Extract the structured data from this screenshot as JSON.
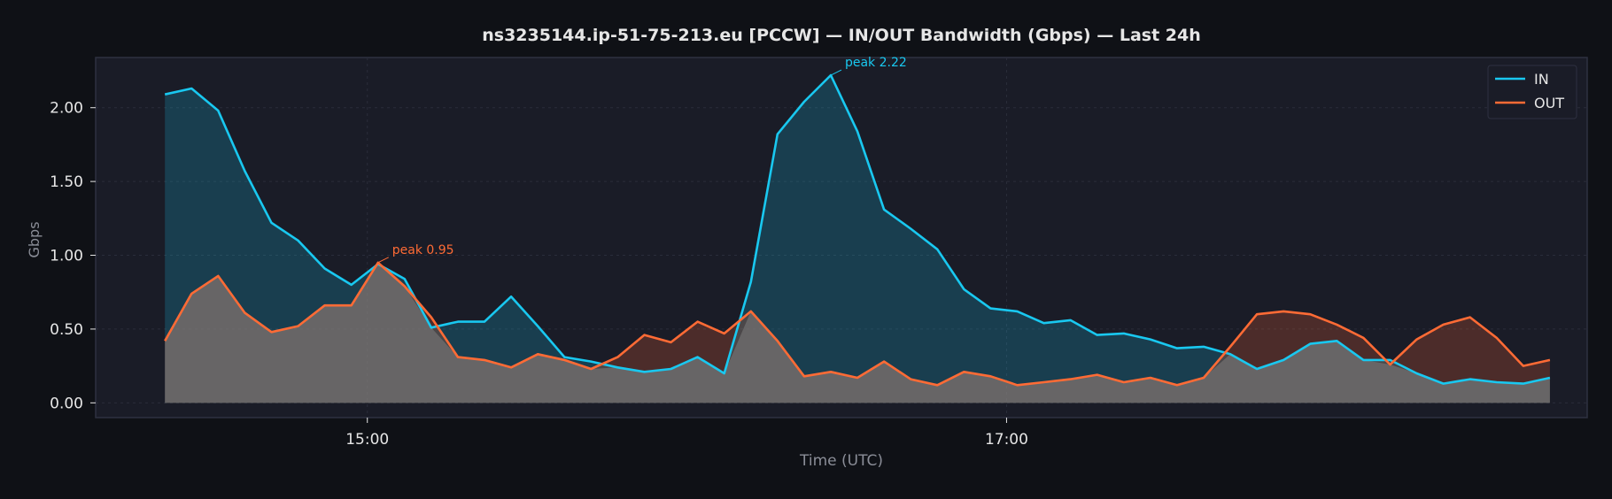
{
  "colors": {
    "background": "#0f1116",
    "plot_background": "#1a1c27",
    "frame": "#2e3140",
    "grid": "#2a2d3a",
    "text": "#e6e6e6",
    "axis_label": "#8a8d97",
    "in": "#19c8f0",
    "out": "#ff6b35"
  },
  "chart_data": {
    "type": "area",
    "title": "ns3235144.ip-51-75-213.eu [PCCW] — IN/OUT Bandwidth (Gbps) — Last 24h",
    "xlabel": "Time (UTC)",
    "ylabel": "Gbps",
    "xlim": [
      "14:09",
      "18:49"
    ],
    "ylim": [
      -0.1,
      2.34
    ],
    "yticks": [
      "0.00",
      "0.50",
      "1.00",
      "1.50",
      "2.00"
    ],
    "xticks": [
      "15:00",
      "17:00"
    ],
    "grid": true,
    "legend": "top-right",
    "x": [
      "14:22",
      "14:27",
      "14:32",
      "14:37",
      "14:42",
      "14:47",
      "14:52",
      "14:57",
      "15:02",
      "15:07",
      "15:12",
      "15:17",
      "15:22",
      "15:27",
      "15:32",
      "15:37",
      "15:42",
      "15:47",
      "15:52",
      "15:57",
      "16:02",
      "16:07",
      "16:12",
      "16:17",
      "16:22",
      "16:27",
      "16:32",
      "16:37",
      "16:42",
      "16:47",
      "16:52",
      "16:57",
      "17:02",
      "17:07",
      "17:12",
      "17:17",
      "17:22",
      "17:27",
      "17:32",
      "17:37",
      "17:42",
      "17:47",
      "17:52",
      "17:57",
      "18:02",
      "18:07",
      "18:12",
      "18:17",
      "18:22",
      "18:27",
      "18:32",
      "18:37",
      "18:42"
    ],
    "series": [
      {
        "name": "IN",
        "values": [
          2.09,
          2.13,
          1.98,
          1.57,
          1.22,
          1.1,
          0.91,
          0.8,
          0.94,
          0.84,
          0.51,
          0.55,
          0.55,
          0.72,
          0.52,
          0.31,
          0.28,
          0.24,
          0.21,
          0.23,
          0.31,
          0.2,
          0.82,
          1.82,
          2.04,
          2.22,
          1.84,
          1.31,
          1.18,
          1.04,
          0.77,
          0.64,
          0.62,
          0.54,
          0.56,
          0.46,
          0.47,
          0.43,
          0.37,
          0.38,
          0.33,
          0.23,
          0.29,
          0.4,
          0.42,
          0.29,
          0.29,
          0.2,
          0.13,
          0.16,
          0.14,
          0.13,
          0.17
        ]
      },
      {
        "name": "OUT",
        "values": [
          0.42,
          0.74,
          0.86,
          0.61,
          0.48,
          0.52,
          0.66,
          0.66,
          0.95,
          0.79,
          0.58,
          0.31,
          0.29,
          0.24,
          0.33,
          0.29,
          0.23,
          0.31,
          0.46,
          0.41,
          0.55,
          0.47,
          0.62,
          0.42,
          0.18,
          0.21,
          0.17,
          0.28,
          0.16,
          0.12,
          0.21,
          0.18,
          0.12,
          0.14,
          0.16,
          0.19,
          0.14,
          0.17,
          0.12,
          0.17,
          0.38,
          0.6,
          0.62,
          0.6,
          0.53,
          0.44,
          0.26,
          0.43,
          0.53,
          0.58,
          0.44,
          0.25,
          0.29
        ]
      }
    ],
    "annotations": [
      {
        "series": "IN",
        "index": 25,
        "text": "peak 2.22"
      },
      {
        "series": "OUT",
        "index": 8,
        "text": "peak 0.95"
      }
    ]
  }
}
